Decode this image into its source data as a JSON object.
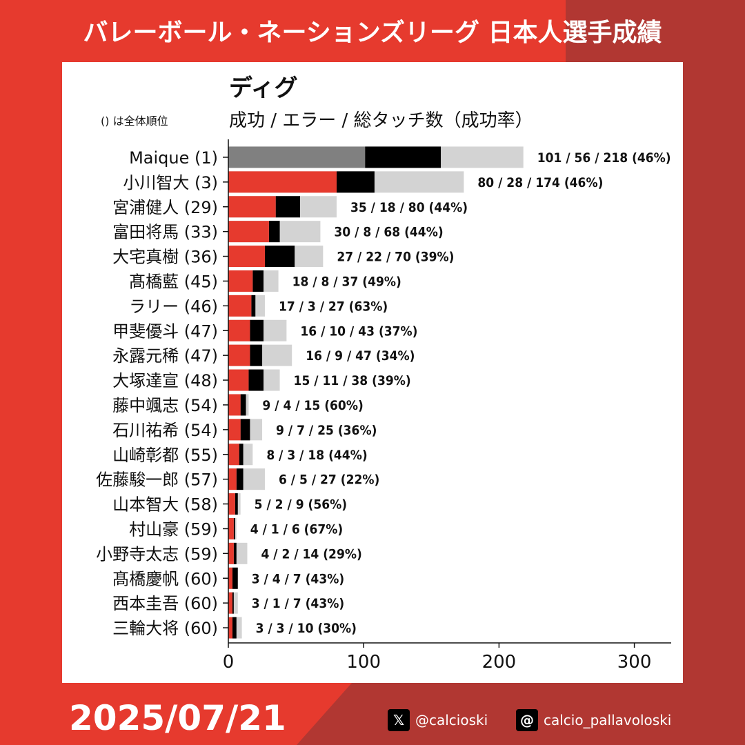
{
  "header": {
    "title": "バレーボール・ネーションズリーグ 日本人選手成績"
  },
  "panel": {
    "title": "ディグ",
    "rank_note": "() は全体順位",
    "subtitle": "成功 / エラー / 総タッチ数（成功率）"
  },
  "footer": {
    "date": "2025/07/21",
    "x_handle": "@calcioski",
    "threads_handle": "calcio_pallavoloski",
    "x_icon": "x-logo-icon",
    "threads_icon": "threads-logo-icon"
  },
  "colors": {
    "success_highlight": "#808080",
    "success": "#e63a2e",
    "error": "#000000",
    "total": "#d3d3d3"
  },
  "chart_data": {
    "type": "bar",
    "orientation": "horizontal",
    "stacked_overlay": true,
    "xlim": [
      0,
      330
    ],
    "xticks": [
      0,
      100,
      200,
      300
    ],
    "grid": false,
    "categories": [
      "Maique (1)",
      "小川智大 (3)",
      "宮浦健人 (29)",
      "富田将馬 (33)",
      "大宅真樹 (36)",
      "髙橋藍 (45)",
      "ラリー (46)",
      "甲斐優斗 (47)",
      "永露元稀 (47)",
      "大塚達宣 (48)",
      "藤中颯志 (54)",
      "石川祐希 (54)",
      "山崎彰都 (55)",
      "佐藤駿一郎 (57)",
      "山本智大 (58)",
      "村山豪 (59)",
      "小野寺太志 (59)",
      "髙橋慶帆 (60)",
      "西本圭吾 (60)",
      "三輪大将 (60)"
    ],
    "series": [
      {
        "name": "成功",
        "values": [
          101,
          80,
          35,
          30,
          27,
          18,
          17,
          16,
          16,
          15,
          9,
          9,
          8,
          6,
          5,
          4,
          4,
          3,
          3,
          3
        ]
      },
      {
        "name": "エラー",
        "values": [
          56,
          28,
          18,
          8,
          22,
          8,
          3,
          10,
          9,
          11,
          4,
          7,
          3,
          5,
          2,
          1,
          2,
          4,
          1,
          3
        ]
      },
      {
        "name": "総タッチ数",
        "values": [
          218,
          174,
          80,
          68,
          70,
          37,
          27,
          43,
          47,
          38,
          15,
          25,
          18,
          27,
          9,
          6,
          14,
          7,
          7,
          10
        ]
      }
    ],
    "data_labels": [
      "101 / 56 / 218 (46%)",
      "80 / 28 / 174 (46%)",
      "35 / 18 / 80 (44%)",
      "30 / 8 / 68 (44%)",
      "27 / 22 / 70 (39%)",
      "18 / 8 / 37 (49%)",
      "17 / 3 / 27 (63%)",
      "16 / 10 / 43 (37%)",
      "16 / 9 / 47 (34%)",
      "15 / 11 / 38 (39%)",
      "9 / 4 / 15 (60%)",
      "9 / 7 / 25 (36%)",
      "8 / 3 / 18 (44%)",
      "6 / 5 / 27 (22%)",
      "5 / 2 / 9 (56%)",
      "4 / 1 / 6 (67%)",
      "4 / 2 / 14 (29%)",
      "3 / 4 / 7 (43%)",
      "3 / 1 / 7 (43%)",
      "3 / 3 / 10 (30%)"
    ]
  }
}
